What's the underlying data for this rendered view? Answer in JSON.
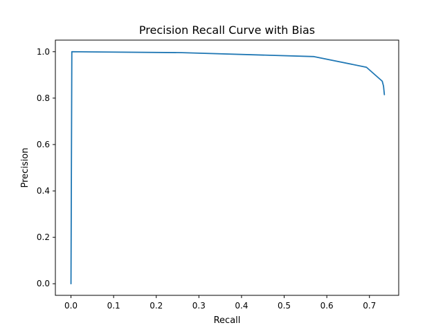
{
  "chart_data": {
    "type": "line",
    "title": "Precision Recall Curve with Bias",
    "xlabel": "Recall",
    "ylabel": "Precision",
    "xlim": [
      -0.0366,
      0.7686
    ],
    "ylim": [
      -0.05,
      1.05
    ],
    "xticks": [
      0.0,
      0.1,
      0.2,
      0.3,
      0.4,
      0.5,
      0.6,
      0.7
    ],
    "xtick_labels": [
      "0.0",
      "0.1",
      "0.2",
      "0.3",
      "0.4",
      "0.5",
      "0.6",
      "0.7"
    ],
    "yticks": [
      0.0,
      0.2,
      0.4,
      0.6,
      0.8,
      1.0
    ],
    "ytick_labels": [
      "0.0",
      "0.2",
      "0.4",
      "0.6",
      "0.8",
      "1.0"
    ],
    "grid": false,
    "series": [
      {
        "color": "#1f77b4",
        "x": [
          0.0,
          0.002,
          0.26,
          0.57,
          0.693,
          0.73,
          0.733,
          0.735
        ],
        "y": [
          0.0,
          1.0,
          0.996,
          0.979,
          0.933,
          0.873,
          0.852,
          0.815
        ]
      }
    ]
  }
}
